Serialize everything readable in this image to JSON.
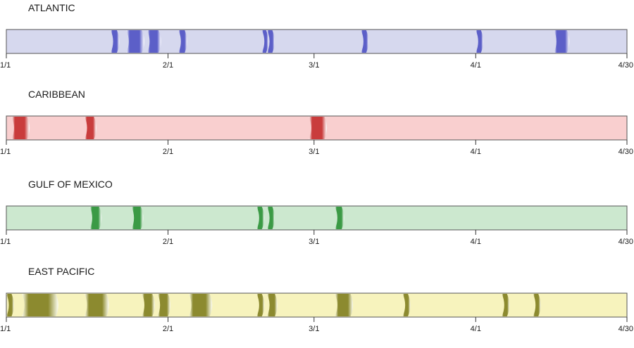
{
  "chart_data": {
    "type": "timeline",
    "x_axis": {
      "start": "1/1",
      "end": "4/30",
      "ticks": [
        {
          "label": "1/1",
          "day": 0
        },
        {
          "label": "2/1",
          "day": 31
        },
        {
          "label": "3/1",
          "day": 59
        },
        {
          "label": "4/1",
          "day": 90
        },
        {
          "label": "4/30",
          "day": 119
        }
      ]
    },
    "panels": [
      {
        "title": "ATLANTIC",
        "fill": "#d6d8ee",
        "mark_color": "#5c5fc8",
        "mark_light": "#ffffff",
        "events": [
          {
            "date": "1/21",
            "duration_days": 1.2
          },
          {
            "date": "1/24",
            "duration_days": 3.0
          },
          {
            "date": "1/28",
            "duration_days": 2.2
          },
          {
            "date": "2/3",
            "duration_days": 1.2
          },
          {
            "date": "2/19",
            "duration_days": 0.8
          },
          {
            "date": "2/20",
            "duration_days": 1.0
          },
          {
            "date": "3/10",
            "duration_days": 1.0
          },
          {
            "date": "4/1",
            "duration_days": 1.0
          },
          {
            "date": "4/16",
            "duration_days": 2.5
          }
        ]
      },
      {
        "title": "CARIBBEAN",
        "fill": "#f9cfcf",
        "mark_color": "#c93c3c",
        "mark_light": "#ffffff",
        "events": [
          {
            "date": "1/2",
            "duration_days": 3.0
          },
          {
            "date": "1/16",
            "duration_days": 1.8
          },
          {
            "date": "2/28",
            "duration_days": 3.0
          }
        ]
      },
      {
        "title": "GULF OF MEXICO",
        "fill": "#cce8cf",
        "mark_color": "#3b9a45",
        "mark_light": "#ffffff",
        "events": [
          {
            "date": "1/17",
            "duration_days": 1.8
          },
          {
            "date": "1/25",
            "duration_days": 1.8
          },
          {
            "date": "2/18",
            "duration_days": 1.0
          },
          {
            "date": "2/20",
            "duration_days": 1.0
          },
          {
            "date": "3/5",
            "duration_days": 1.3
          }
        ]
      },
      {
        "title": "EAST PACIFIC",
        "fill": "#f7f3bd",
        "mark_color": "#8c8a2f",
        "mark_light": "#fffff2",
        "events": [
          {
            "date": "1/1",
            "duration_days": 1.0
          },
          {
            "date": "1/4",
            "duration_days": 6.5
          },
          {
            "date": "1/16",
            "duration_days": 4.2
          },
          {
            "date": "1/27",
            "duration_days": 2.0
          },
          {
            "date": "1/30",
            "duration_days": 2.0
          },
          {
            "date": "2/5",
            "duration_days": 4.0
          },
          {
            "date": "2/18",
            "duration_days": 1.0
          },
          {
            "date": "2/20",
            "duration_days": 1.5
          },
          {
            "date": "3/5",
            "duration_days": 3.0
          },
          {
            "date": "3/18",
            "duration_days": 1.0
          },
          {
            "date": "4/6",
            "duration_days": 1.0
          },
          {
            "date": "4/12",
            "duration_days": 1.0
          }
        ]
      }
    ]
  }
}
